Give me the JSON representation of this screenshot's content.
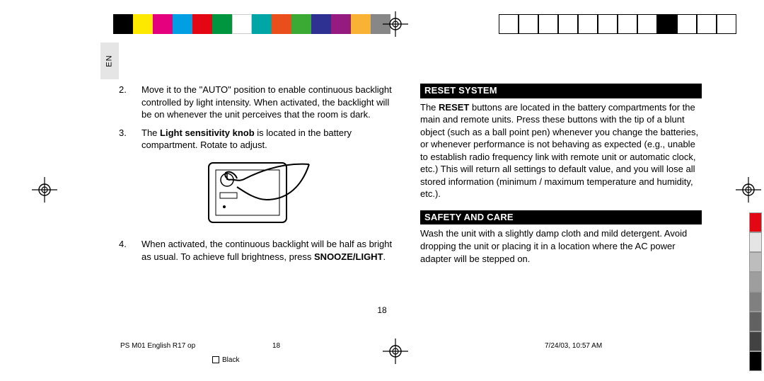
{
  "lang_label": "EN",
  "top_colors": [
    "#000000",
    "#fde900",
    "#e5007e",
    "#009fe3",
    "#e30613",
    "#009640",
    "#ffffff",
    "#00a6a6",
    "#e94e1b",
    "#3aaa35",
    "#2e3192",
    "#951b81",
    "#f9b233",
    "#878787"
  ],
  "top_outline_filled_index": 8,
  "top_outline_count": 12,
  "gray_strip": [
    "#e30613",
    "#e5e5e5",
    "#bdbdbd",
    "#9e9e9e",
    "#808080",
    "#616161",
    "#424242",
    "#000000"
  ],
  "left": {
    "items": [
      {
        "num": "2.",
        "text_parts": [
          {
            "t": "Move it to the \"AUTO\" position to enable continuous backlight controlled by light intensity. When activated, the backlight will be on whenever the unit perceives that the room is dark."
          }
        ]
      },
      {
        "num": "3.",
        "text_parts": [
          {
            "t": "The "
          },
          {
            "t": "Light sensitivity knob",
            "bold": true
          },
          {
            "t": " is located in the battery compartment. Rotate to adjust."
          }
        ]
      },
      {
        "num": "4.",
        "text_parts": [
          {
            "t": "When activated, the continuous backlight will be half as bright as usual. To achieve full brightness, press "
          },
          {
            "t": "SNOOZE/LIGHT",
            "bold": true
          },
          {
            "t": "."
          }
        ]
      }
    ]
  },
  "right": {
    "sections": [
      {
        "heading": "RESET SYSTEM",
        "body_parts": [
          {
            "t": "The "
          },
          {
            "t": "RESET",
            "bold": true
          },
          {
            "t": " buttons are located in the battery compartments for the main and remote units. Press these buttons with the tip of a blunt object (such as a ball point pen) whenever you change the batteries, or whenever performance is not behaving as expected (e.g., unable to establish radio frequency link with remote unit or automatic clock, etc.) This will return all settings to default value, and you will lose all stored information (minimum / maximum temperature and humidity, etc.)."
          }
        ]
      },
      {
        "heading": "SAFETY AND CARE",
        "body_parts": [
          {
            "t": "Wash the unit with a slightly damp cloth and mild detergent. Avoid dropping the unit or placing it in a location where the AC power adapter will be stepped on."
          }
        ]
      }
    ]
  },
  "page_number": "18",
  "footer": {
    "filename": "PS M01 English R17 op",
    "page": "18",
    "datetime": "7/24/03, 10:57 AM",
    "color_label": "Black"
  }
}
